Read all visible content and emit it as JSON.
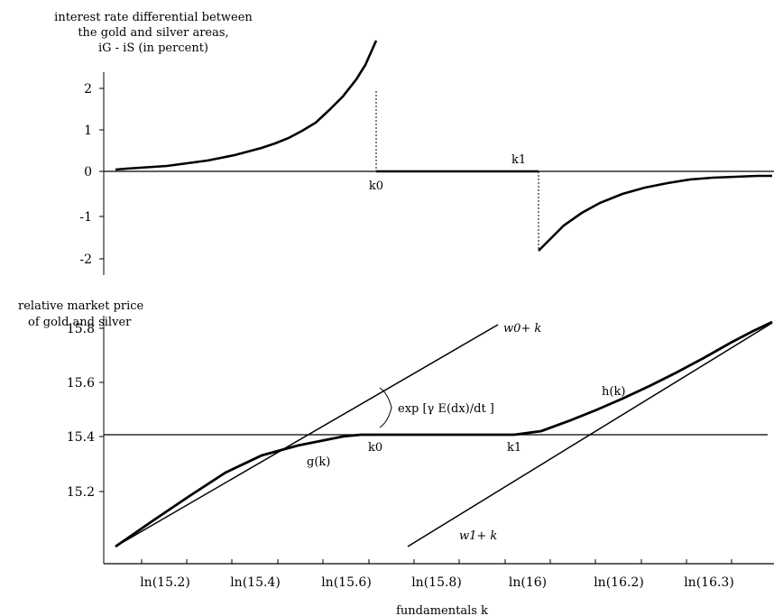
{
  "chart_data": [
    {
      "type": "line",
      "ylabel_lines": [
        "interest rate differential between",
        "the gold and silver areas,",
        "iG - iS (in percent)"
      ],
      "ylim": [
        -2.3,
        2.3
      ],
      "yticks": [
        "2",
        "1",
        "0",
        "-1",
        "-2"
      ],
      "x_markers": [
        "k0",
        "k1"
      ],
      "series": [
        {
          "values": [
            [
              15.1,
              0.06
            ],
            [
              15.15,
              0.09
            ],
            [
              15.2,
              0.13
            ],
            [
              15.25,
              0.19
            ],
            [
              15.3,
              0.27
            ],
            [
              15.35,
              0.38
            ],
            [
              15.4,
              0.53
            ],
            [
              15.45,
              0.74
            ],
            [
              15.5,
              1.02
            ],
            [
              15.55,
              1.4
            ],
            [
              15.6,
              1.85
            ],
            [
              15.6,
              0.0
            ],
            [
              15.96,
              0.0
            ],
            [
              15.96,
              -1.8
            ],
            [
              16.0,
              -1.45
            ],
            [
              16.05,
              -1.15
            ],
            [
              16.1,
              -0.86
            ],
            [
              16.15,
              -0.63
            ],
            [
              16.2,
              -0.45
            ],
            [
              16.25,
              -0.32
            ],
            [
              16.3,
              -0.21
            ],
            [
              16.35,
              -0.13
            ],
            [
              16.4,
              -0.09
            ]
          ]
        }
      ]
    },
    {
      "type": "line",
      "ylabel_lines": [
        "relative market price",
        "of gold and silver"
      ],
      "xlabel": "fundamentals k",
      "ylim": [
        15.05,
        15.85
      ],
      "yticks": [
        "15.8",
        "15.6",
        "15.4",
        "15.2"
      ],
      "xticks": [
        "ln(15.2)",
        "ln(15.4)",
        "ln(15.6)",
        "ln(15.8)",
        "ln(16)",
        "ln(16.2)",
        "ln(16.3)"
      ],
      "reference_level": 15.5,
      "annotations": {
        "w0": "w0+ k",
        "w1": "w1+ k",
        "g": "g(k)",
        "h": "h(k)",
        "exp": "exp [γ E(dx)/dt ]",
        "k0": "k0",
        "k1": "k1"
      },
      "series": [
        {
          "values": [
            [
              15.1,
              15.1
            ],
            [
              15.5,
              15.67
            ]
          ]
        },
        {
          "values": [
            [
              15.75,
              15.1
            ],
            [
              16.4,
              15.88
            ]
          ]
        },
        {
          "values": [
            [
              15.1,
              15.1
            ],
            [
              15.2,
              15.2
            ],
            [
              15.3,
              15.3
            ],
            [
              15.4,
              15.38
            ],
            [
              15.5,
              15.45
            ],
            [
              15.6,
              15.5
            ],
            [
              15.96,
              15.5
            ]
          ]
        },
        {
          "values": [
            [
              15.96,
              15.5
            ],
            [
              16.05,
              15.53
            ],
            [
              16.15,
              15.58
            ],
            [
              16.25,
              15.66
            ],
            [
              16.4,
              15.88
            ]
          ]
        }
      ]
    }
  ],
  "colors": {
    "ink": "#000000",
    "background": "#ffffff"
  }
}
